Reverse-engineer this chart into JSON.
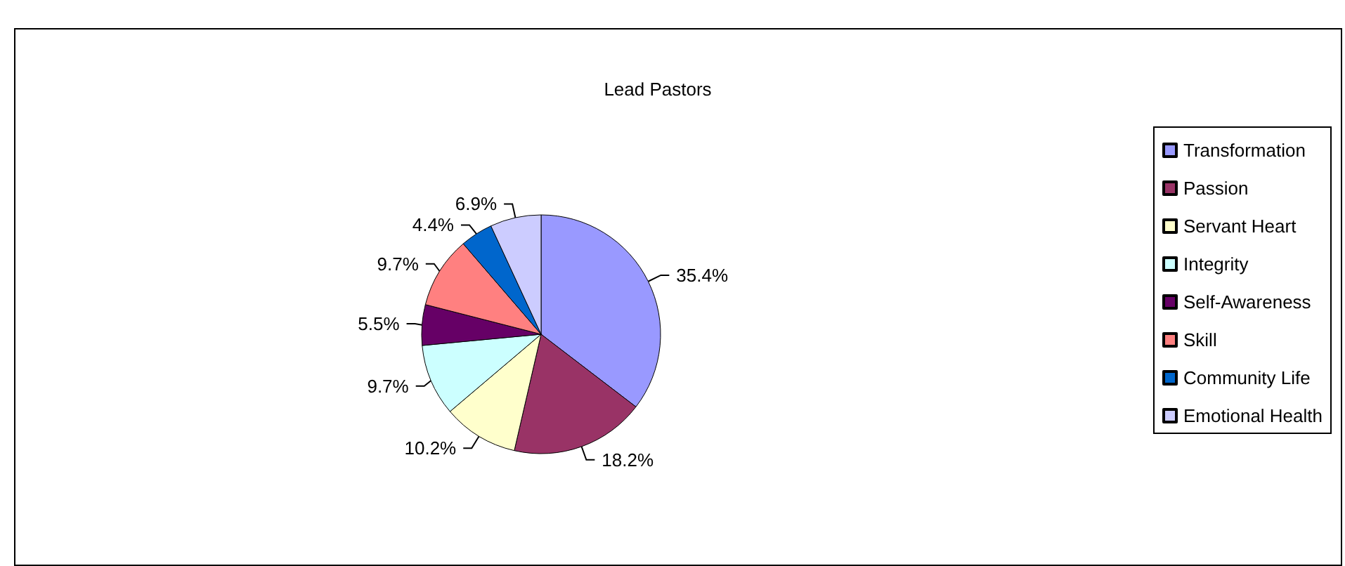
{
  "chart_data": {
    "type": "pie",
    "title": "Lead Pastors",
    "categories": [
      "Transformation",
      "Passion",
      "Servant Heart",
      "Integrity",
      "Self-Awareness",
      "Skill",
      "Community Life",
      "Emotional Health"
    ],
    "values": [
      35.4,
      18.2,
      10.2,
      9.7,
      5.5,
      9.7,
      4.4,
      6.9
    ],
    "value_labels": [
      "35.4%",
      "18.2%",
      "10.2%",
      "9.7%",
      "5.5%",
      "9.7%",
      "4.4%",
      "6.9%"
    ],
    "colors": [
      "#9999ff",
      "#993366",
      "#ffffcc",
      "#ccffff",
      "#660066",
      "#ff8080",
      "#0066cc",
      "#ccccff"
    ],
    "legend": "right"
  }
}
